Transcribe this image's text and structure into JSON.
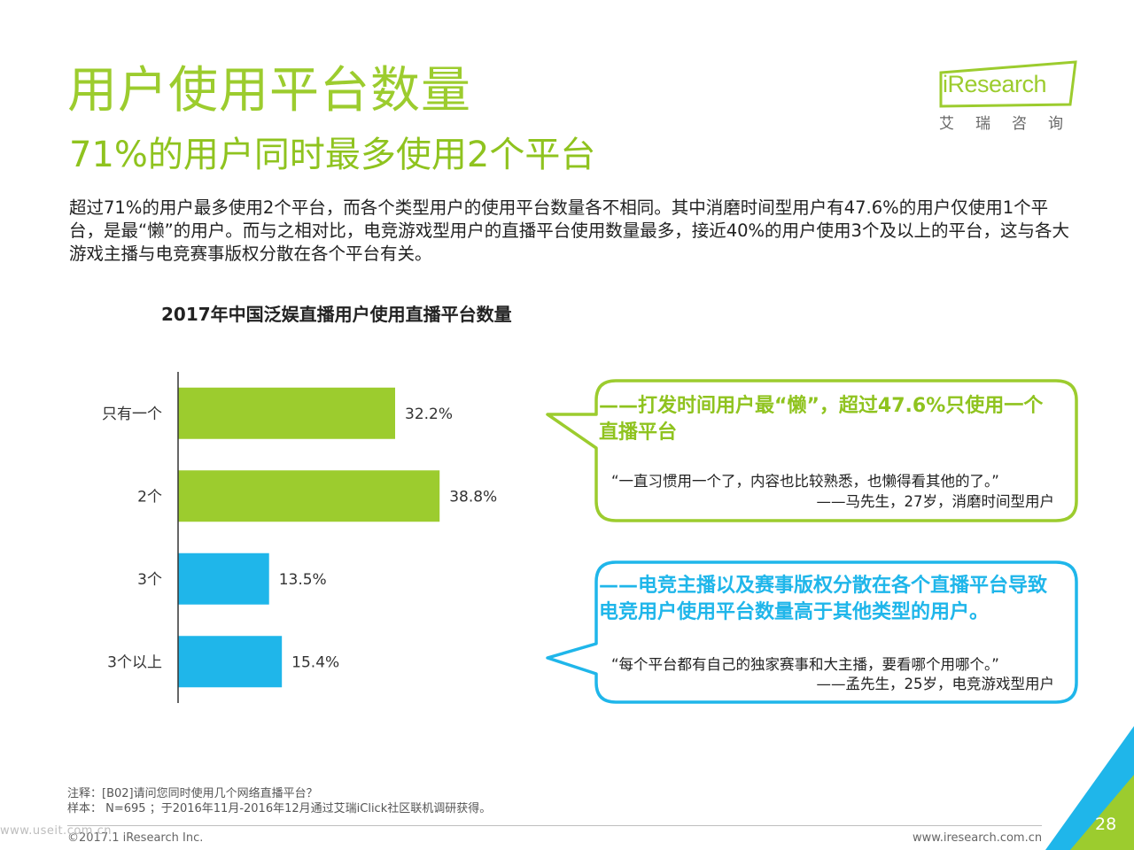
{
  "title": "用户使用平台数量",
  "subtitle": "71%的用户同时最多使用2个平台",
  "intro": "超过71%的用户最多使用2个平台，而各个类型用户的使用平台数量各不相同。其中消磨时间型用户有47.6%的用户仅使用1个平台，是最“懒”的用户。而与之相对比，电竞游戏型用户的直播平台使用数量最多，接近40%的用户使用3个及以上的平台，这与各大游戏主播与电竞赛事版权分散在各个平台有关。",
  "logo": {
    "brand": "iResearch",
    "cn": "艾瑞咨询"
  },
  "chart_data": {
    "type": "bar",
    "orientation": "horizontal",
    "title": "2017年中国泛娱直播用户使用直播平台数量",
    "categories": [
      "只有一个",
      "2个",
      "3个",
      "3个以上"
    ],
    "values": [
      32.2,
      38.8,
      13.5,
      15.4
    ],
    "value_labels": [
      "32.2%",
      "38.8%",
      "13.5%",
      "15.4%"
    ],
    "colors": [
      "#9ccc2e",
      "#9ccc2e",
      "#1fb6ea",
      "#1fb6ea"
    ],
    "xlabel": "",
    "ylabel": "",
    "xlim": [
      0,
      50
    ],
    "grid": false,
    "legend": "none"
  },
  "bubbles": [
    {
      "heading": "——打发时间用户最“懒”，超过47.6%只使用一个直播平台",
      "quote": "“一直习惯用一个了，内容也比较熟悉，也懒得看其他的了。”",
      "attribution": "——马先生，27岁，消磨时间型用户",
      "color": "#9ccc2e"
    },
    {
      "heading": "——电竞主播以及赛事版权分散在各个直播平台导致电竞用户使用平台数量高于其他类型的用户。",
      "quote": "“每个平台都有自己的独家赛事和大主播，要看哪个用哪个。”",
      "attribution": "——孟先生，25岁，电竞游戏型用户",
      "color": "#1fb6ea"
    }
  ],
  "notes": {
    "line1": "注释：[B02]请问您同时使用几个网络直播平台？",
    "line2": "样本： N=695 ；于2016年11月-2016年12月通过艾瑞iClick社区联机调研获得。"
  },
  "footer": {
    "copyright": "©2017.1 iResearch Inc.",
    "website": "www.iresearch.com.cn",
    "watermark": "www.useit.com.cn",
    "page": "28"
  }
}
